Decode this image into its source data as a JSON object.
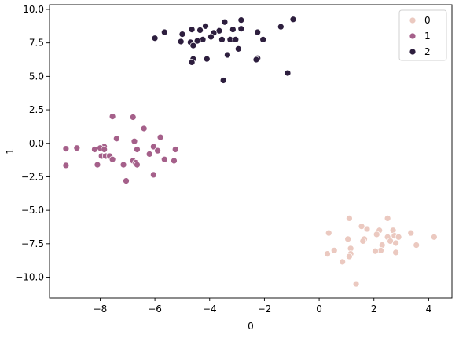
{
  "chart_data": {
    "type": "scatter",
    "xlabel": "0",
    "ylabel": "1",
    "xlim": [
      -9.85,
      4.85
    ],
    "ylim": [
      -11.55,
      10.35
    ],
    "xticks": [
      -8,
      -6,
      -4,
      -2,
      0,
      2,
      4
    ],
    "yticks": [
      -10.0,
      -7.5,
      -5.0,
      -2.5,
      0.0,
      2.5,
      5.0,
      7.5,
      10.0
    ],
    "xtick_labels": [
      "−8",
      "−6",
      "−4",
      "−2",
      "0",
      "2",
      "4"
    ],
    "ytick_labels": [
      "−10.0",
      "−7.5",
      "−5.0",
      "−2.5",
      "0.0",
      "2.5",
      "5.0",
      "7.5",
      "10.0"
    ],
    "grid": false,
    "legend_position": "top-right",
    "series": [
      {
        "name": "0",
        "color": "#ebc9c0",
        "points": [
          [
            1.1,
            -5.6
          ],
          [
            2.5,
            -5.6
          ],
          [
            0.35,
            -6.7
          ],
          [
            1.55,
            -6.2
          ],
          [
            1.75,
            -6.4
          ],
          [
            2.2,
            -6.5
          ],
          [
            2.7,
            -6.5
          ],
          [
            2.1,
            -6.8
          ],
          [
            3.35,
            -6.7
          ],
          [
            2.75,
            -6.9
          ],
          [
            2.5,
            -7.0
          ],
          [
            2.9,
            -7.0
          ],
          [
            4.2,
            -7.0
          ],
          [
            1.05,
            -7.15
          ],
          [
            1.65,
            -7.15
          ],
          [
            1.6,
            -7.3
          ],
          [
            2.6,
            -7.3
          ],
          [
            2.8,
            -7.45
          ],
          [
            2.3,
            -7.6
          ],
          [
            3.55,
            -7.6
          ],
          [
            1.15,
            -7.85
          ],
          [
            0.55,
            -8.0
          ],
          [
            2.25,
            -8.0
          ],
          [
            2.05,
            -8.05
          ],
          [
            2.8,
            -8.15
          ],
          [
            0.3,
            -8.25
          ],
          [
            1.15,
            -8.25
          ],
          [
            1.1,
            -8.45
          ],
          [
            0.85,
            -8.85
          ],
          [
            1.35,
            -10.5
          ]
        ]
      },
      {
        "name": "1",
        "color": "#a5608a",
        "points": [
          [
            -7.55,
            2.0
          ],
          [
            -6.8,
            1.95
          ],
          [
            -6.4,
            1.1
          ],
          [
            -7.4,
            0.35
          ],
          [
            -6.75,
            0.15
          ],
          [
            -5.8,
            0.45
          ],
          [
            -7.85,
            -0.25
          ],
          [
            -6.05,
            -0.25
          ],
          [
            -9.25,
            -0.4
          ],
          [
            -8.85,
            -0.35
          ],
          [
            -8.2,
            -0.45
          ],
          [
            -8.0,
            -0.35
          ],
          [
            -7.85,
            -0.45
          ],
          [
            -6.65,
            -0.45
          ],
          [
            -5.9,
            -0.55
          ],
          [
            -5.25,
            -0.45
          ],
          [
            -7.95,
            -0.95
          ],
          [
            -7.8,
            -0.95
          ],
          [
            -7.65,
            -0.95
          ],
          [
            -6.2,
            -0.8
          ],
          [
            -7.55,
            -1.2
          ],
          [
            -5.65,
            -1.2
          ],
          [
            -5.3,
            -1.3
          ],
          [
            -6.8,
            -1.3
          ],
          [
            -6.7,
            -1.45
          ],
          [
            -6.65,
            -1.6
          ],
          [
            -7.15,
            -1.6
          ],
          [
            -8.1,
            -1.6
          ],
          [
            -9.25,
            -1.65
          ],
          [
            -6.05,
            -2.35
          ],
          [
            -7.05,
            -2.8
          ]
        ]
      },
      {
        "name": "2",
        "color": "#2d1e3e",
        "points": [
          [
            -0.95,
            9.25
          ],
          [
            -2.85,
            9.2
          ],
          [
            -3.45,
            9.05
          ],
          [
            -4.15,
            8.75
          ],
          [
            -1.4,
            8.7
          ],
          [
            -4.65,
            8.5
          ],
          [
            -4.35,
            8.45
          ],
          [
            -3.15,
            8.5
          ],
          [
            -2.85,
            8.55
          ],
          [
            -3.65,
            8.4
          ],
          [
            -2.25,
            8.3
          ],
          [
            -3.85,
            8.25
          ],
          [
            -5.65,
            8.3
          ],
          [
            -5.0,
            8.15
          ],
          [
            -3.95,
            7.95
          ],
          [
            -6.0,
            7.85
          ],
          [
            -4.25,
            7.75
          ],
          [
            -3.55,
            7.75
          ],
          [
            -3.25,
            7.75
          ],
          [
            -3.05,
            7.75
          ],
          [
            -2.05,
            7.75
          ],
          [
            -5.05,
            7.6
          ],
          [
            -4.7,
            7.55
          ],
          [
            -4.45,
            7.65
          ],
          [
            -4.6,
            7.3
          ],
          [
            -2.95,
            7.05
          ],
          [
            -3.35,
            6.6
          ],
          [
            -4.1,
            6.3
          ],
          [
            -4.6,
            6.3
          ],
          [
            -2.25,
            6.35
          ],
          [
            -2.3,
            6.25
          ],
          [
            -4.65,
            6.05
          ],
          [
            -1.15,
            5.25
          ],
          [
            -3.5,
            4.7
          ]
        ]
      }
    ]
  }
}
